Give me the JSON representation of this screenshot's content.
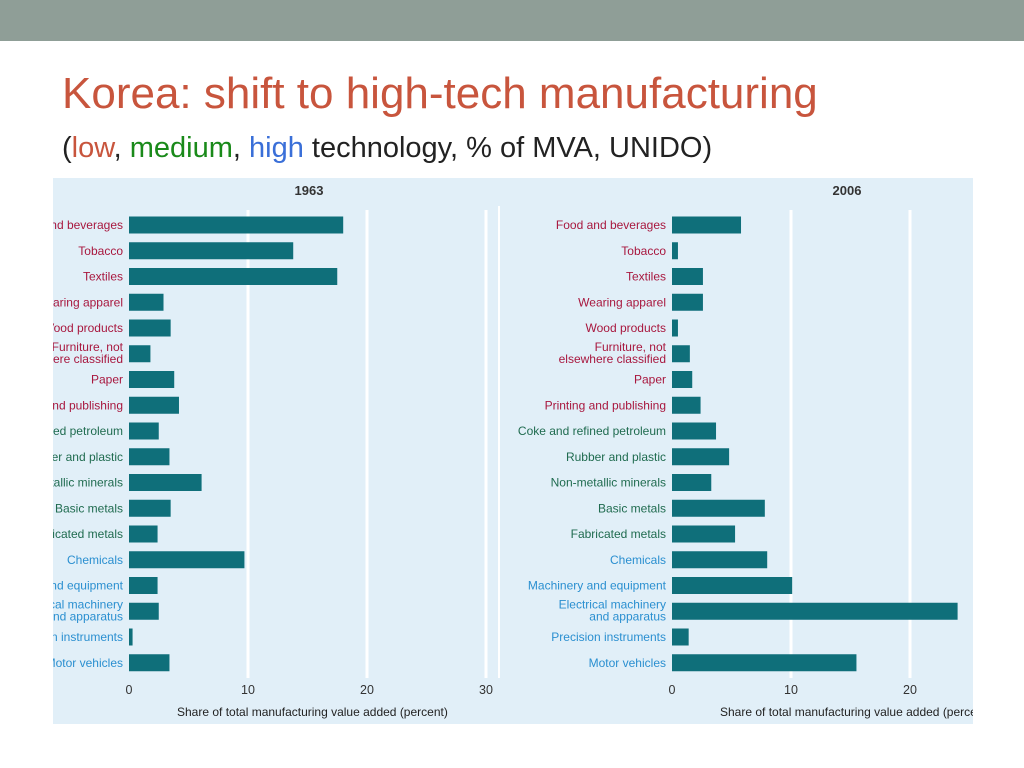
{
  "slide": {
    "title": "Korea: shift to high-tech manufacturing",
    "subtitle": {
      "open": "(",
      "low": "low",
      "sep1": ", ",
      "medium": "medium",
      "sep2": ", ",
      "high": "high",
      "rest": " technology, % of MVA, UNIDO)"
    }
  },
  "colors": {
    "title": "#c8553d",
    "low": "#c8553d",
    "medium": "#1a8a1a",
    "high": "#3a6fd8",
    "label_low": "#a8173e",
    "label_medium": "#1f6b4f",
    "label_high": "#2a8fd0",
    "bar": "#0f6f7a",
    "panel_bg": "#e1eff8",
    "topbar": "#8f9e97"
  },
  "chart_data": [
    {
      "type": "bar",
      "orientation": "horizontal",
      "title": "1963",
      "xlabel": "Share of total manufacturing value added (percent)",
      "xlim": [
        0,
        30
      ],
      "xticks": [
        0,
        10,
        20,
        30
      ],
      "grid": true,
      "categories": [
        {
          "label": "and beverages",
          "tech": "low"
        },
        {
          "label": "Tobacco",
          "tech": "low"
        },
        {
          "label": "Textiles",
          "tech": "low"
        },
        {
          "label": "earing apparel",
          "tech": "low"
        },
        {
          "label": "Vood products",
          "tech": "low"
        },
        {
          "label": "Furniture, not|nere classified",
          "tech": "low"
        },
        {
          "label": "Paper",
          "tech": "low"
        },
        {
          "label": "and publishing",
          "tech": "low"
        },
        {
          "label": "ned petroleum",
          "tech": "medium"
        },
        {
          "label": "er and plastic",
          "tech": "medium"
        },
        {
          "label": "tallic minerals",
          "tech": "medium"
        },
        {
          "label": "Basic metals",
          "tech": "medium"
        },
        {
          "label": "ricated metals",
          "tech": "medium"
        },
        {
          "label": "Chemicals",
          "tech": "high"
        },
        {
          "label": "nd equipment",
          "tech": "high"
        },
        {
          "label": "cal machinery|and apparatus",
          "tech": "high"
        },
        {
          "label": "n instruments",
          "tech": "high"
        },
        {
          "label": "Motor vehicles",
          "tech": "high"
        }
      ],
      "values": [
        18.0,
        13.8,
        17.5,
        2.9,
        3.5,
        1.8,
        3.8,
        4.2,
        2.5,
        3.4,
        6.1,
        3.5,
        2.4,
        9.7,
        2.4,
        2.5,
        0.3,
        3.4
      ]
    },
    {
      "type": "bar",
      "orientation": "horizontal",
      "title": "2006",
      "xlabel": "Share of total manufacturing value added (perce",
      "xlim": [
        0,
        30
      ],
      "xticks": [
        0,
        10,
        20
      ],
      "grid": true,
      "categories": [
        {
          "label": "Food and beverages",
          "tech": "low"
        },
        {
          "label": "Tobacco",
          "tech": "low"
        },
        {
          "label": "Textiles",
          "tech": "low"
        },
        {
          "label": "Wearing apparel",
          "tech": "low"
        },
        {
          "label": "Wood products",
          "tech": "low"
        },
        {
          "label": "Furniture, not|elsewhere classified",
          "tech": "low"
        },
        {
          "label": "Paper",
          "tech": "low"
        },
        {
          "label": "Printing and publishing",
          "tech": "low"
        },
        {
          "label": "Coke and refined petroleum",
          "tech": "medium"
        },
        {
          "label": "Rubber and plastic",
          "tech": "medium"
        },
        {
          "label": "Non-metallic minerals",
          "tech": "medium"
        },
        {
          "label": "Basic metals",
          "tech": "medium"
        },
        {
          "label": "Fabricated metals",
          "tech": "medium"
        },
        {
          "label": "Chemicals",
          "tech": "high"
        },
        {
          "label": "Machinery and equipment",
          "tech": "high"
        },
        {
          "label": "Electrical machinery|and apparatus",
          "tech": "high"
        },
        {
          "label": "Precision instruments",
          "tech": "high"
        },
        {
          "label": "Motor vehicles",
          "tech": "high"
        }
      ],
      "values": [
        5.8,
        0.5,
        2.6,
        2.6,
        0.5,
        1.5,
        1.7,
        2.4,
        3.7,
        4.8,
        3.3,
        7.8,
        5.3,
        8.0,
        10.1,
        24.0,
        1.4,
        15.5
      ]
    }
  ]
}
